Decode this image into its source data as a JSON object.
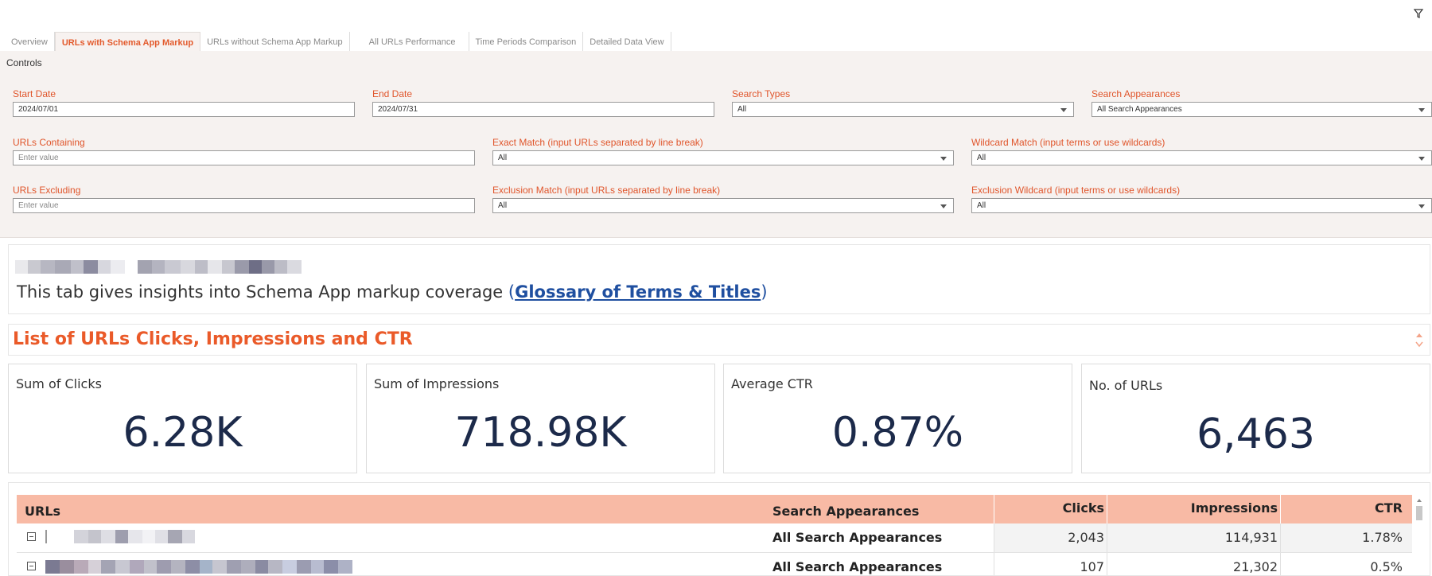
{
  "tabs": [
    {
      "label": "Overview",
      "active": false
    },
    {
      "label": "URLs with Schema App Markup",
      "active": true
    },
    {
      "label": "URLs without Schema App Markup",
      "active": false
    },
    {
      "label": "All URLs Performance",
      "active": false
    },
    {
      "label": "Time Periods Comparison",
      "active": false
    },
    {
      "label": "Detailed Data View",
      "active": false
    }
  ],
  "controls": {
    "title": "Controls",
    "start_date": {
      "label": "Start Date",
      "value": "2024/07/01"
    },
    "end_date": {
      "label": "End Date",
      "value": "2024/07/31"
    },
    "search_types": {
      "label": "Search Types",
      "value": "All"
    },
    "search_appearances": {
      "label": "Search Appearances",
      "value": "All Search Appearances"
    },
    "urls_containing": {
      "label": "URLs Containing",
      "placeholder": "Enter value"
    },
    "exact_match": {
      "label": "Exact Match (input URLs separated by line break)",
      "value": "All"
    },
    "wildcard_match": {
      "label": "Wildcard Match (input terms or use wildcards)",
      "value": "All"
    },
    "urls_excluding": {
      "label": "URLs Excluding",
      "placeholder": "Enter value"
    },
    "exclusion_match": {
      "label": "Exclusion Match (input URLs separated by line break)",
      "value": "All"
    },
    "exclusion_wildcard": {
      "label": "Exclusion Wildcard (input terms or use wildcards)",
      "value": "All"
    }
  },
  "info": {
    "text": "This tab gives insights into Schema App markup coverage ",
    "link": "Glossary of Terms & Titles",
    "open_paren": "(",
    "close_paren": ")"
  },
  "section": {
    "title": "List of URLs Clicks, Impressions and CTR"
  },
  "kpis": [
    {
      "label": "Sum of Clicks",
      "value": "6.28K"
    },
    {
      "label": "Sum of Impressions",
      "value": "718.98K"
    },
    {
      "label": "Average CTR",
      "value": "0.87%"
    },
    {
      "label": "No. of URLs",
      "value": "6,463"
    }
  ],
  "table": {
    "headers": {
      "urls": "URLs",
      "appearances": "Search Appearances",
      "clicks": "Clicks",
      "impressions": "Impressions",
      "ctr": "CTR"
    },
    "rows": [
      {
        "appearance": "All Search Appearances",
        "clicks": "2,043",
        "impressions": "114,931",
        "ctr": "1.78%"
      },
      {
        "appearance": "All Search Appearances",
        "clicks": "107",
        "impressions": "21,302",
        "ctr": "0.5%"
      }
    ]
  },
  "colors": {
    "accent": "#ea5a29",
    "link": "#1f4fa0",
    "header_bg": "#f8baa5",
    "kpi_value": "#1c2a4a"
  }
}
